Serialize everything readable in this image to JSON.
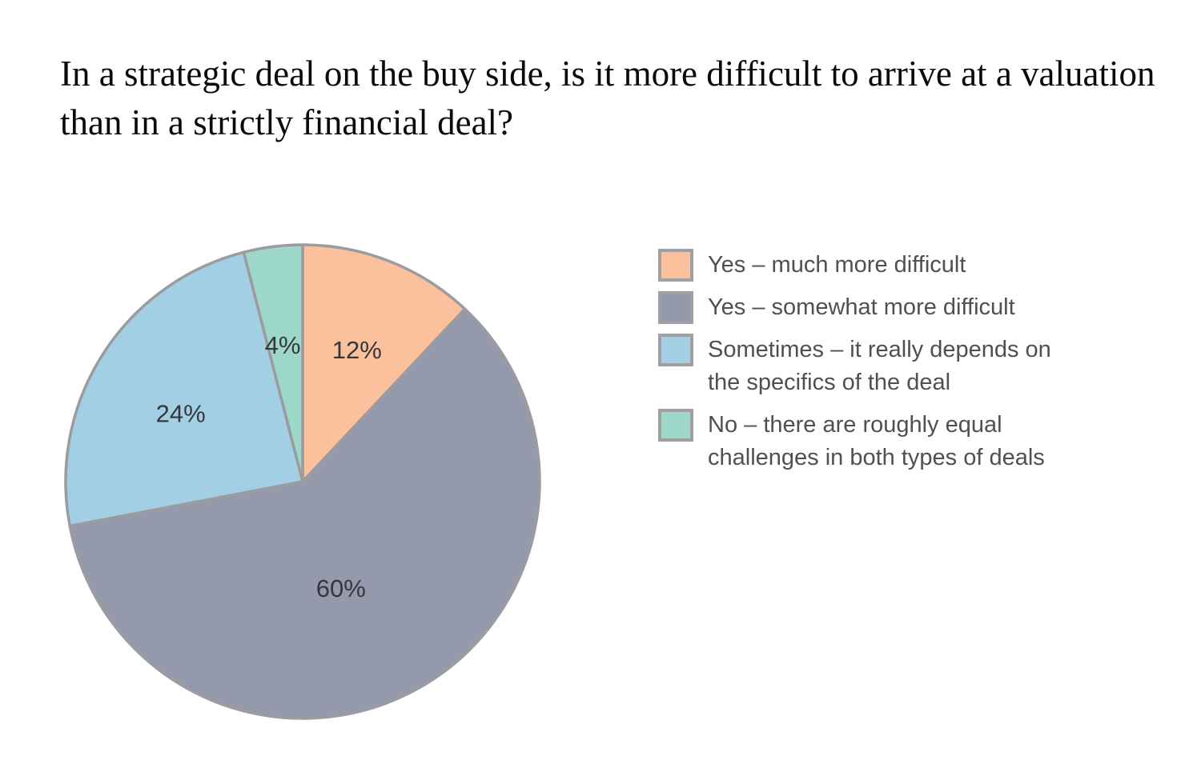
{
  "title": "In a strategic deal on the buy side, is it more difficult to arrive at a valuation than in a strictly financial deal?",
  "chart_data": {
    "type": "pie",
    "title": "In a strategic deal on the buy side, is it more difficult to arrive at a valuation than in a strictly financial deal?",
    "value_suffix": "%",
    "start_angle_deg": 0,
    "direction": "clockwise",
    "stroke_color": "#9b9ba0",
    "legend_position": "right",
    "slices": [
      {
        "label": "Yes – much more difficult",
        "value": 12,
        "display": "12%",
        "color": "#fac19c"
      },
      {
        "label": "Yes – somewhat more difficult",
        "value": 60,
        "display": "60%",
        "color": "#9599ac"
      },
      {
        "label": "Sometimes – it really depends on the specifics of the deal",
        "value": 24,
        "display": "24%",
        "color": "#a2cfe3"
      },
      {
        "label": "No – there are roughly equal challenges in both types of deals",
        "value": 4,
        "display": "4%",
        "color": "#9dd7c8"
      }
    ]
  }
}
